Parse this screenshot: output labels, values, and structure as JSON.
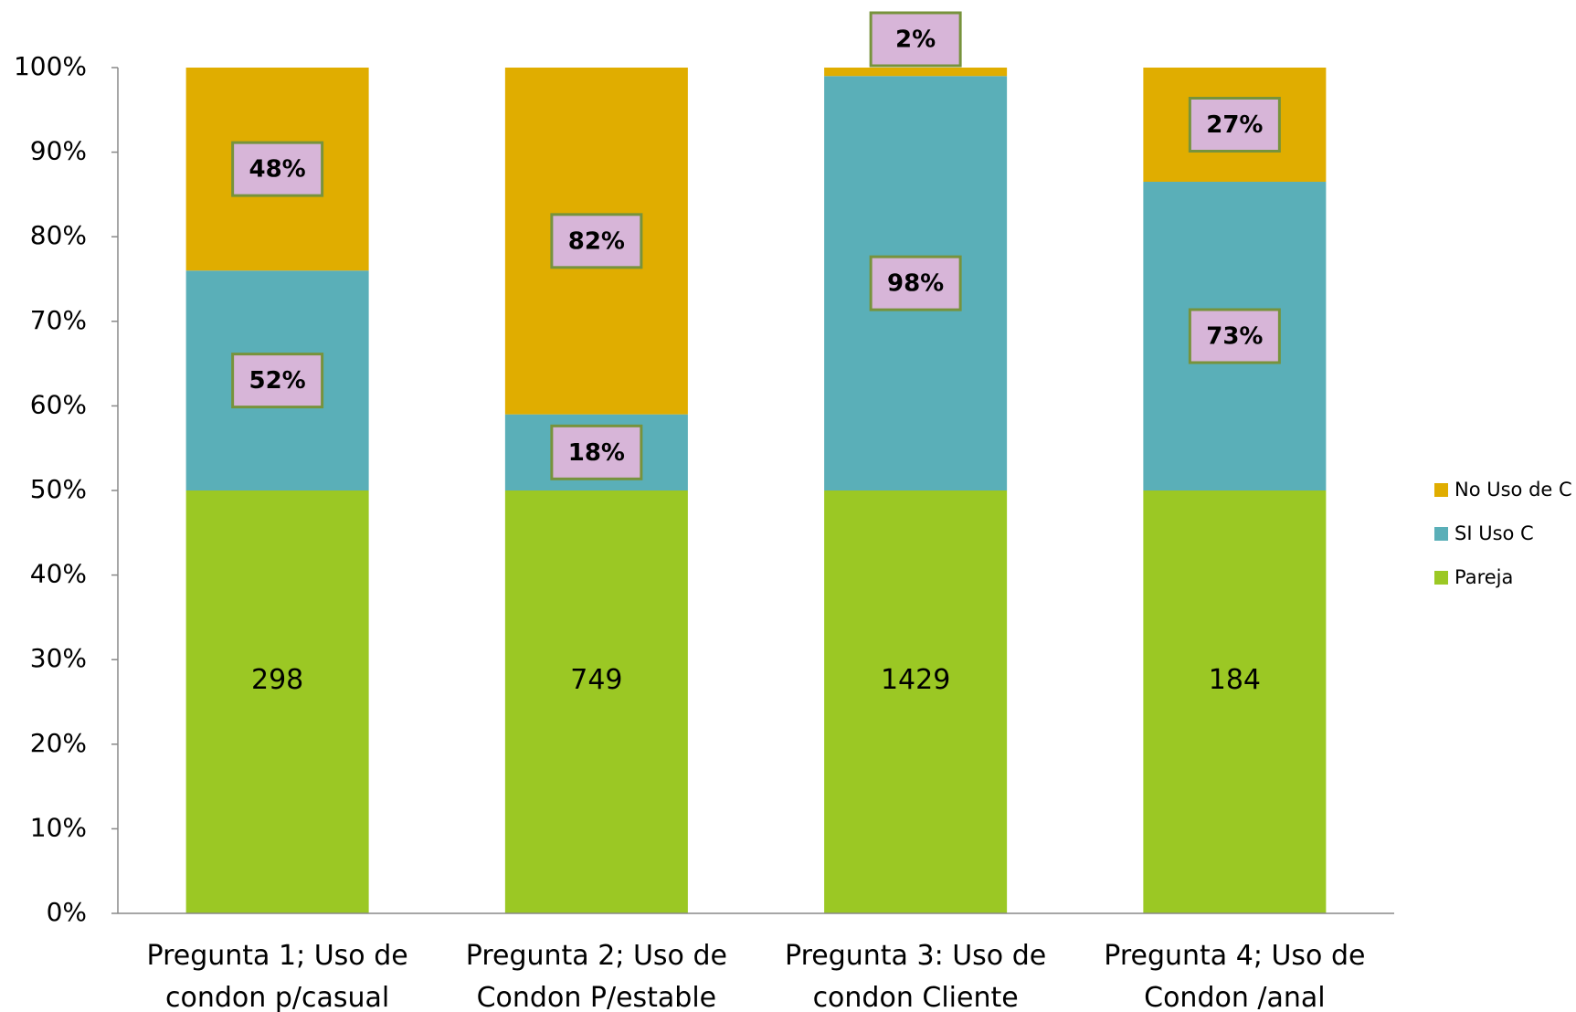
{
  "chart_data": {
    "type": "stacked_bar_100",
    "categories": [
      "Pregunta 1; Uso de condon p/casual",
      "Pregunta 2; Uso de Condon P/estable",
      "Pregunta 3: Uso de condon Cliente",
      "Pregunta 4; Uso de Condon /anal"
    ],
    "series": [
      {
        "name": "Pareja",
        "color": "#9bc824",
        "values": [
          50,
          50,
          50,
          50
        ],
        "value_labels": [
          "298",
          "749",
          "1429",
          "184"
        ]
      },
      {
        "name": "SI Uso C",
        "color": "#5aafb8",
        "values": [
          26,
          9,
          49,
          36.5
        ],
        "value_labels": [
          "52%",
          "18%",
          "98%",
          "73%"
        ]
      },
      {
        "name": "No Uso de C",
        "color": "#e0ad00",
        "values": [
          24,
          41,
          1,
          13.5
        ],
        "value_labels": [
          "48%",
          "82%",
          "2%",
          "27%"
        ]
      }
    ],
    "ylim": [
      0,
      100
    ],
    "yticks": [
      {
        "value": 0,
        "label": "0%"
      },
      {
        "value": 10,
        "label": "10%"
      },
      {
        "value": 20,
        "label": "20%"
      },
      {
        "value": 30,
        "label": "30%"
      },
      {
        "value": 40,
        "label": "40%"
      },
      {
        "value": 50,
        "label": "50%"
      },
      {
        "value": 60,
        "label": "60%"
      },
      {
        "value": 70,
        "label": "70%"
      },
      {
        "value": 80,
        "label": "80%"
      },
      {
        "value": 90,
        "label": "90%"
      },
      {
        "value": 100,
        "label": "100%"
      }
    ],
    "grid": false,
    "legend": "right"
  }
}
